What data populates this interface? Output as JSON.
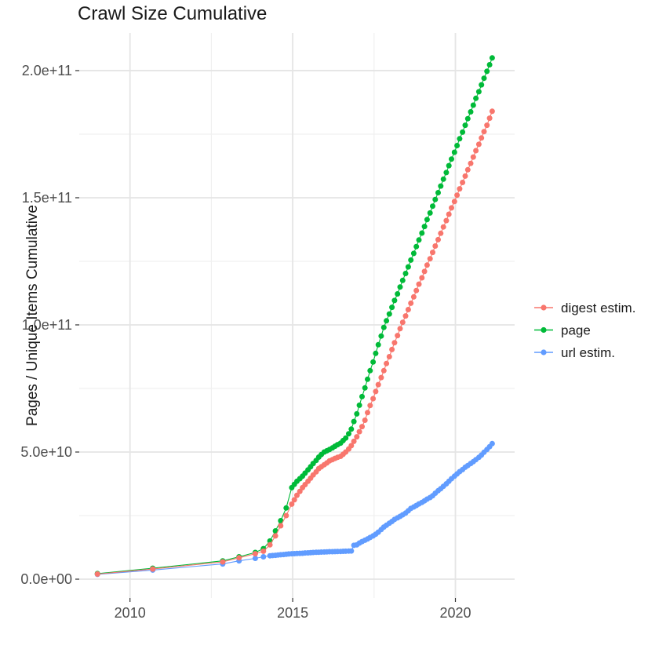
{
  "title": "Crawl Size Cumulative",
  "chart_data": {
    "type": "scatter",
    "title": "Crawl Size Cumulative",
    "xlabel": "",
    "ylabel": "Pages / Unique Items Cumulative",
    "values_unit": "billions of pages (1e9); y tick labels shown in scientific notation",
    "xlim": [
      2008.44,
      2021.82
    ],
    "ylim_billions": [
      -7.4,
      214.8
    ],
    "grid": true,
    "legend_position": "right",
    "x_ticks": {
      "major": [
        2010,
        2015,
        2020
      ],
      "labels": [
        "2010",
        "2015",
        "2020"
      ],
      "minor": [
        2012.5,
        2017.5
      ]
    },
    "y_ticks": {
      "major": [
        0,
        50,
        100,
        150,
        200
      ],
      "labels": [
        "0.0e+00",
        "5.0e+10",
        "1.0e+11",
        "1.5e+11",
        "2.0e+11"
      ],
      "minor": [
        25,
        75,
        125,
        175
      ]
    },
    "draw_order": [
      "url estim.",
      "page",
      "digest estim."
    ],
    "series": [
      {
        "name": "digest estim.",
        "color": "#F8766D",
        "points": [
          [
            2009,
            2
          ],
          [
            2010.7,
            4
          ],
          [
            2012.85,
            6.8
          ],
          [
            2013.35,
            8.4
          ],
          [
            2013.85,
            10
          ],
          [
            2014.1,
            11
          ],
          [
            2014.3,
            13.5
          ],
          [
            2014.47,
            17
          ],
          [
            2014.63,
            21
          ],
          [
            2014.8,
            25
          ],
          [
            2014.97,
            29.5
          ],
          [
            2015.05,
            31.2
          ],
          [
            2015.13,
            33
          ],
          [
            2015.22,
            34.5
          ],
          [
            2015.3,
            36
          ],
          [
            2015.38,
            37.2
          ],
          [
            2015.47,
            38.5
          ],
          [
            2015.55,
            39.7
          ],
          [
            2015.63,
            41
          ],
          [
            2015.72,
            42.2
          ],
          [
            2015.8,
            43.5
          ],
          [
            2015.88,
            44.2
          ],
          [
            2015.97,
            45
          ],
          [
            2016.05,
            45.7
          ],
          [
            2016.13,
            46.5
          ],
          [
            2016.22,
            47
          ],
          [
            2016.3,
            47.5
          ],
          [
            2016.38,
            47.9
          ],
          [
            2016.47,
            48.3
          ],
          [
            2016.55,
            49.1
          ],
          [
            2016.63,
            50
          ],
          [
            2016.72,
            51.2
          ],
          [
            2016.8,
            52.5
          ],
          [
            2016.88,
            54.2
          ],
          [
            2016.97,
            56
          ],
          [
            2017.05,
            58
          ],
          [
            2017.13,
            60
          ],
          [
            2017.22,
            62.5
          ],
          [
            2017.3,
            65.5
          ],
          [
            2017.38,
            68.3
          ],
          [
            2017.47,
            71
          ],
          [
            2017.55,
            73.8
          ],
          [
            2017.63,
            76.5
          ],
          [
            2017.72,
            79.3
          ],
          [
            2017.8,
            82
          ],
          [
            2017.88,
            84.8
          ],
          [
            2017.97,
            87.5
          ],
          [
            2018.05,
            90.3
          ],
          [
            2018.13,
            93
          ],
          [
            2018.22,
            95.8
          ],
          [
            2018.3,
            98.5
          ],
          [
            2018.38,
            101
          ],
          [
            2018.47,
            103.5
          ],
          [
            2018.55,
            106
          ],
          [
            2018.63,
            108.5
          ],
          [
            2018.72,
            111
          ],
          [
            2018.8,
            113.5
          ],
          [
            2018.88,
            116
          ],
          [
            2018.97,
            118.5
          ],
          [
            2019.05,
            121
          ],
          [
            2019.13,
            123.5
          ],
          [
            2019.22,
            126
          ],
          [
            2019.3,
            128.5
          ],
          [
            2019.38,
            131
          ],
          [
            2019.47,
            133.5
          ],
          [
            2019.55,
            136
          ],
          [
            2019.63,
            138.5
          ],
          [
            2019.72,
            141
          ],
          [
            2019.8,
            143.5
          ],
          [
            2019.88,
            146
          ],
          [
            2019.97,
            148.5
          ],
          [
            2020.05,
            151
          ],
          [
            2020.13,
            153.5
          ],
          [
            2020.22,
            156
          ],
          [
            2020.3,
            158.5
          ],
          [
            2020.38,
            161
          ],
          [
            2020.47,
            163.5
          ],
          [
            2020.55,
            166
          ],
          [
            2020.63,
            168.5
          ],
          [
            2020.72,
            171
          ],
          [
            2020.8,
            173.5
          ],
          [
            2020.88,
            176
          ],
          [
            2020.97,
            178.5
          ],
          [
            2021.05,
            181.3
          ],
          [
            2021.13,
            184
          ]
        ]
      },
      {
        "name": "page",
        "color": "#00BA38",
        "points": [
          [
            2009,
            2.2
          ],
          [
            2010.7,
            4.3
          ],
          [
            2012.85,
            7.2
          ],
          [
            2013.35,
            8.8
          ],
          [
            2013.85,
            10.5
          ],
          [
            2014.1,
            12
          ],
          [
            2014.3,
            15
          ],
          [
            2014.47,
            19
          ],
          [
            2014.63,
            23
          ],
          [
            2014.8,
            28
          ],
          [
            2014.97,
            36
          ],
          [
            2015.05,
            37.3
          ],
          [
            2015.13,
            38.5
          ],
          [
            2015.22,
            39.5
          ],
          [
            2015.3,
            40.5
          ],
          [
            2015.38,
            41.7
          ],
          [
            2015.47,
            43
          ],
          [
            2015.55,
            44.2
          ],
          [
            2015.63,
            45.5
          ],
          [
            2015.72,
            46.7
          ],
          [
            2015.8,
            48
          ],
          [
            2015.88,
            49
          ],
          [
            2015.97,
            50
          ],
          [
            2016.05,
            50.5
          ],
          [
            2016.13,
            51
          ],
          [
            2016.22,
            51.6
          ],
          [
            2016.3,
            52.3
          ],
          [
            2016.38,
            52.9
          ],
          [
            2016.47,
            53.5
          ],
          [
            2016.55,
            54.5
          ],
          [
            2016.63,
            55.5
          ],
          [
            2016.72,
            57.2
          ],
          [
            2016.8,
            59
          ],
          [
            2016.88,
            62
          ],
          [
            2016.97,
            65
          ],
          [
            2017.05,
            68.4
          ],
          [
            2017.13,
            71.8
          ],
          [
            2017.22,
            75.2
          ],
          [
            2017.3,
            78.6
          ],
          [
            2017.38,
            82
          ],
          [
            2017.47,
            85.4
          ],
          [
            2017.55,
            88.8
          ],
          [
            2017.63,
            92.2
          ],
          [
            2017.72,
            95.6
          ],
          [
            2017.8,
            99
          ],
          [
            2017.88,
            101.6
          ],
          [
            2017.97,
            104.3
          ],
          [
            2018.05,
            106.9
          ],
          [
            2018.13,
            109.6
          ],
          [
            2018.22,
            112.2
          ],
          [
            2018.3,
            114.9
          ],
          [
            2018.38,
            117.5
          ],
          [
            2018.47,
            120.2
          ],
          [
            2018.55,
            122.8
          ],
          [
            2018.63,
            125.5
          ],
          [
            2018.72,
            128.1
          ],
          [
            2018.8,
            130.8
          ],
          [
            2018.88,
            133.4
          ],
          [
            2018.97,
            136.1
          ],
          [
            2019.05,
            138.7
          ],
          [
            2019.13,
            141.4
          ],
          [
            2019.22,
            144
          ],
          [
            2019.3,
            146.7
          ],
          [
            2019.38,
            149.3
          ],
          [
            2019.47,
            152
          ],
          [
            2019.55,
            154.6
          ],
          [
            2019.63,
            157.3
          ],
          [
            2019.72,
            159.9
          ],
          [
            2019.8,
            162.6
          ],
          [
            2019.88,
            165.2
          ],
          [
            2019.97,
            167.9
          ],
          [
            2020.05,
            170.5
          ],
          [
            2020.13,
            173.2
          ],
          [
            2020.22,
            175.8
          ],
          [
            2020.3,
            178.5
          ],
          [
            2020.38,
            181.1
          ],
          [
            2020.47,
            183.8
          ],
          [
            2020.55,
            186.4
          ],
          [
            2020.63,
            189.1
          ],
          [
            2020.72,
            191.7
          ],
          [
            2020.8,
            194.4
          ],
          [
            2020.88,
            197
          ],
          [
            2020.97,
            199.7
          ],
          [
            2021.05,
            202.3
          ],
          [
            2021.13,
            205
          ]
        ]
      },
      {
        "name": "url estim.",
        "color": "#619CFF",
        "points": [
          [
            2009,
            1.9
          ],
          [
            2010.7,
            3.6
          ],
          [
            2012.85,
            6
          ],
          [
            2013.35,
            7.2
          ],
          [
            2013.85,
            8.2
          ],
          [
            2014.1,
            8.8
          ],
          [
            2014.3,
            9.2
          ],
          [
            2014.38,
            9.3
          ],
          [
            2014.47,
            9.4
          ],
          [
            2014.55,
            9.5
          ],
          [
            2014.63,
            9.6
          ],
          [
            2014.72,
            9.7
          ],
          [
            2014.8,
            9.8
          ],
          [
            2014.88,
            9.9
          ],
          [
            2014.97,
            10
          ],
          [
            2015.05,
            10.05
          ],
          [
            2015.13,
            10.1
          ],
          [
            2015.22,
            10.15
          ],
          [
            2015.3,
            10.2
          ],
          [
            2015.38,
            10.3
          ],
          [
            2015.47,
            10.35
          ],
          [
            2015.55,
            10.4
          ],
          [
            2015.63,
            10.5
          ],
          [
            2015.72,
            10.55
          ],
          [
            2015.8,
            10.6
          ],
          [
            2015.88,
            10.65
          ],
          [
            2015.97,
            10.7
          ],
          [
            2016.05,
            10.75
          ],
          [
            2016.13,
            10.8
          ],
          [
            2016.22,
            10.82
          ],
          [
            2016.3,
            10.85
          ],
          [
            2016.38,
            10.87
          ],
          [
            2016.47,
            10.9
          ],
          [
            2016.55,
            10.95
          ],
          [
            2016.63,
            11
          ],
          [
            2016.72,
            11.05
          ],
          [
            2016.8,
            11.1
          ],
          [
            2016.88,
            13.3
          ],
          [
            2016.97,
            13.5
          ],
          [
            2017.05,
            14.2
          ],
          [
            2017.13,
            14.8
          ],
          [
            2017.22,
            15.3
          ],
          [
            2017.3,
            15.8
          ],
          [
            2017.38,
            16.4
          ],
          [
            2017.47,
            17
          ],
          [
            2017.55,
            17.7
          ],
          [
            2017.63,
            18.5
          ],
          [
            2017.72,
            19.5
          ],
          [
            2017.8,
            20.5
          ],
          [
            2017.88,
            21.2
          ],
          [
            2017.97,
            22
          ],
          [
            2018.05,
            22.7
          ],
          [
            2018.13,
            23.5
          ],
          [
            2018.22,
            24.1
          ],
          [
            2018.3,
            24.7
          ],
          [
            2018.38,
            25.3
          ],
          [
            2018.47,
            26
          ],
          [
            2018.55,
            26.9
          ],
          [
            2018.63,
            27.8
          ],
          [
            2018.72,
            28.4
          ],
          [
            2018.8,
            29
          ],
          [
            2018.88,
            29.6
          ],
          [
            2018.97,
            30.2
          ],
          [
            2019.05,
            30.8
          ],
          [
            2019.13,
            31.5
          ],
          [
            2019.22,
            32.1
          ],
          [
            2019.3,
            32.8
          ],
          [
            2019.38,
            33.8
          ],
          [
            2019.47,
            34.8
          ],
          [
            2019.55,
            35.6
          ],
          [
            2019.63,
            36.5
          ],
          [
            2019.72,
            37.5
          ],
          [
            2019.8,
            38.5
          ],
          [
            2019.88,
            39.5
          ],
          [
            2019.97,
            40.5
          ],
          [
            2020.05,
            41.4
          ],
          [
            2020.13,
            42.3
          ],
          [
            2020.22,
            43.1
          ],
          [
            2020.3,
            44
          ],
          [
            2020.38,
            44.7
          ],
          [
            2020.47,
            45.5
          ],
          [
            2020.55,
            46.2
          ],
          [
            2020.63,
            47
          ],
          [
            2020.72,
            47.9
          ],
          [
            2020.8,
            48.8
          ],
          [
            2020.88,
            49.9
          ],
          [
            2020.97,
            51
          ],
          [
            2021.05,
            52.1
          ],
          [
            2021.13,
            53.3
          ]
        ]
      }
    ]
  },
  "legend": {
    "items": [
      {
        "label": "digest estim.",
        "color": "#F8766D"
      },
      {
        "label": "page",
        "color": "#00BA38"
      },
      {
        "label": "url estim.",
        "color": "#619CFF"
      }
    ]
  },
  "style": {
    "background": "#FFFFFF",
    "grid_major_color": "#E5E5E5",
    "grid_minor_color": "#F0F0F0",
    "axis_text_color": "#4D4D4D",
    "tick_color": "#333333",
    "title_color": "#1A1A1A"
  }
}
